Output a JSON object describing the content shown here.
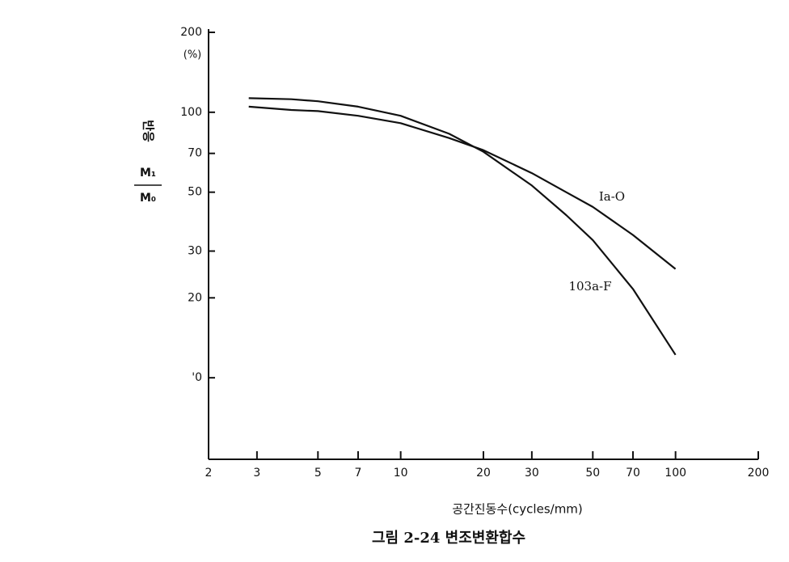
{
  "chart_data": {
    "type": "line",
    "y_label": "반응",
    "y_label_numerator": "M₁",
    "y_label_denominator": "M₀",
    "y_unit": "(%)",
    "x_label": "공간진동수(cycles/mm)",
    "caption": "그림 2-24  변조변환합수",
    "x": [
      2.8,
      4,
      5,
      7,
      10,
      15,
      20,
      30,
      40,
      50,
      70,
      100
    ],
    "series": [
      {
        "name": "Ia-O",
        "color": "#111111",
        "values": [
          105,
          102,
          101,
          97,
          91,
          80,
          72,
          59,
          50,
          44,
          34.5,
          25.7
        ]
      },
      {
        "name": "103a-F",
        "color": "#111111",
        "values": [
          113,
          112,
          110,
          105,
          97,
          83,
          71,
          53,
          41,
          33,
          21.6,
          12.2
        ]
      }
    ],
    "log_x": true,
    "log_y": true,
    "xlim": [
      2,
      200
    ],
    "ylim": [
      5,
      200
    ],
    "xticks": [
      2,
      3,
      5,
      7,
      10,
      20,
      30,
      50,
      70,
      100,
      200
    ],
    "yticks": [
      {
        "value": 10,
        "label": "'0"
      },
      20,
      30,
      50,
      70,
      100,
      200
    ]
  }
}
